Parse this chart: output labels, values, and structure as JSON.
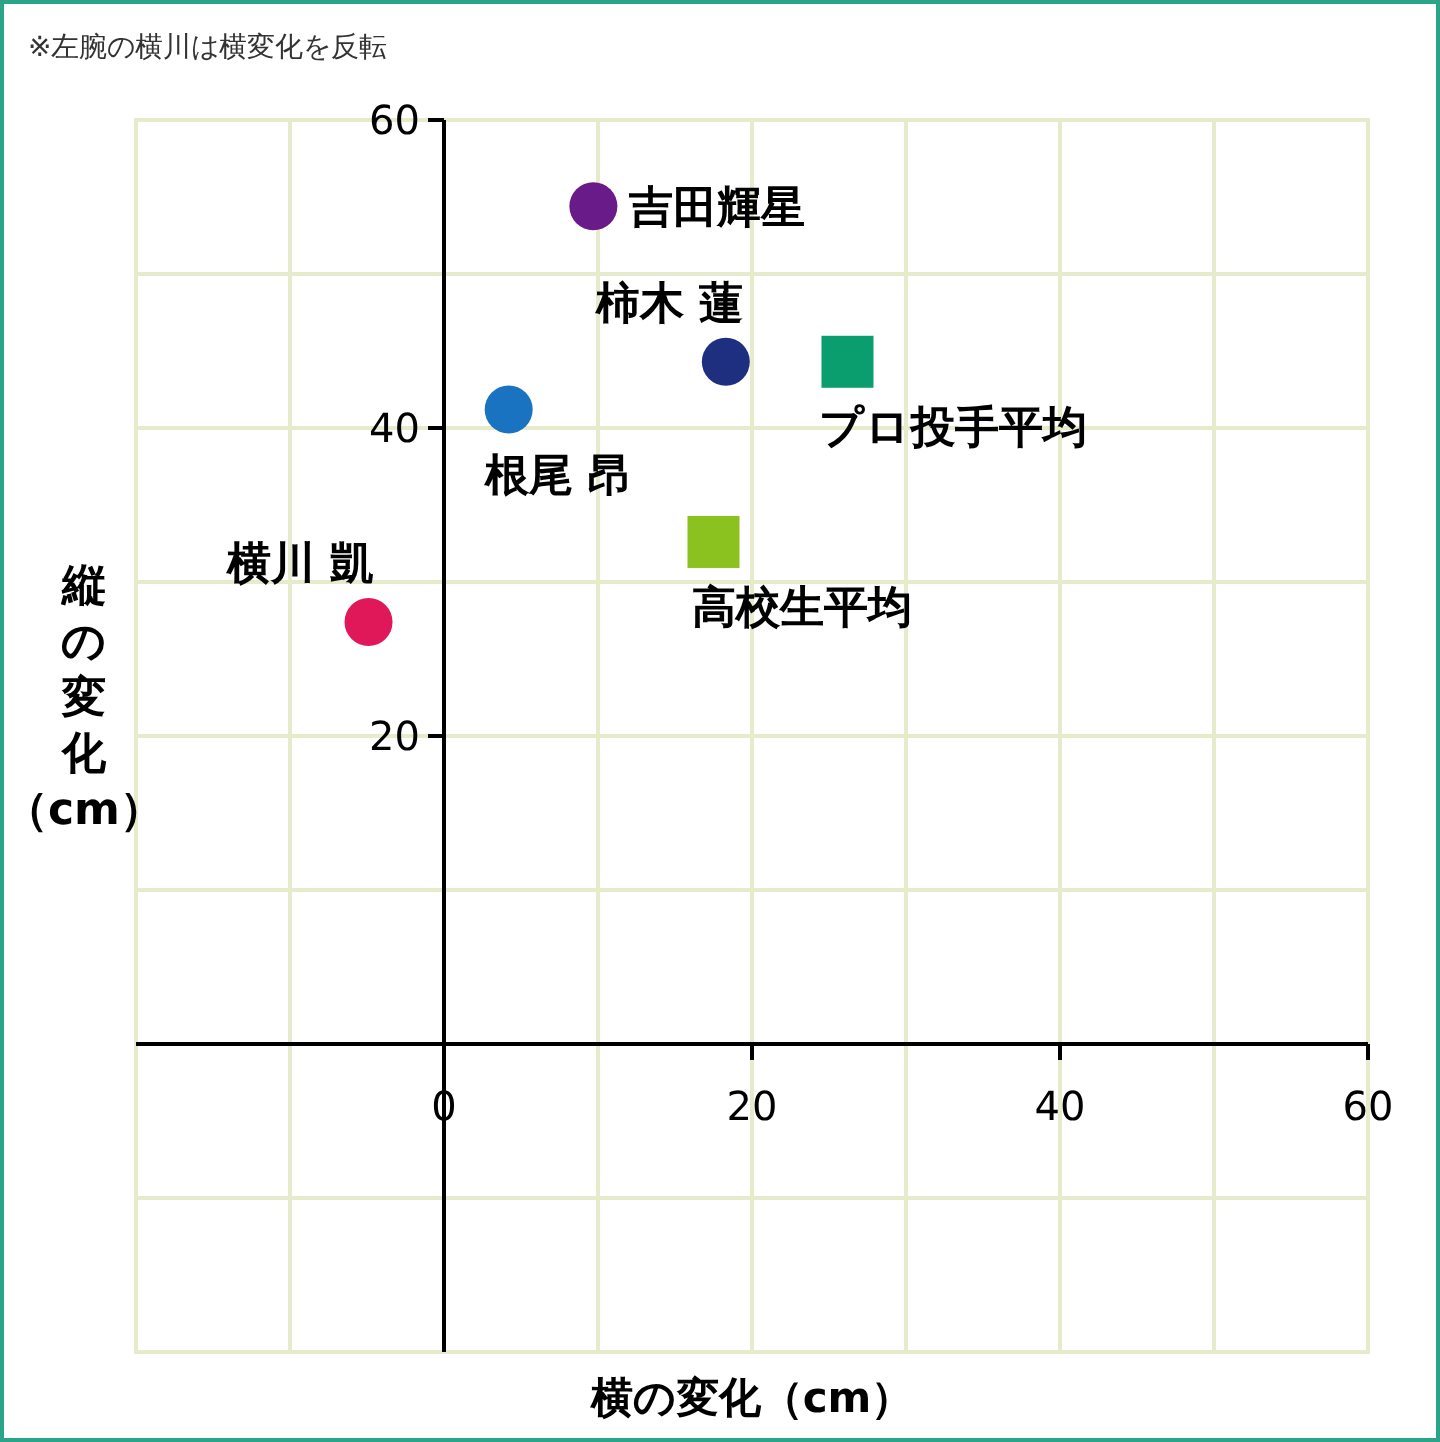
{
  "chart_data": {
    "type": "scatter",
    "annotations": [
      "※左腕の横川は横変化を反転"
    ],
    "xlabel": "横の変化（cm）",
    "ylabel": "縦の変化（cm）",
    "xlim": [
      -20,
      60
    ],
    "ylim": [
      -20,
      60
    ],
    "xticks": [
      {
        "value": -10,
        "label": null
      },
      {
        "value": 0,
        "label": "0"
      },
      {
        "value": 10,
        "label": null
      },
      20,
      {
        "value": 30,
        "label": null
      },
      40,
      {
        "value": 50,
        "label": null
      },
      60
    ],
    "yticks": [
      {
        "value": -10,
        "label": null
      },
      {
        "value": 10,
        "label": null
      },
      20,
      {
        "value": 30,
        "label": null
      },
      40,
      {
        "value": 50,
        "label": null
      },
      60
    ],
    "grid": true,
    "legend": false,
    "series": [
      {
        "name": "吉田輝星",
        "color": "#6a1b8a",
        "marker": "circle",
        "x": [
          9.7
        ],
        "values": [
          54.4
        ]
      },
      {
        "name": "柿木 蓮",
        "color": "#1f2f7f",
        "marker": "circle",
        "x": [
          18.3
        ],
        "values": [
          44.3
        ]
      },
      {
        "name": "プロ投手平均",
        "color": "#0a9e6e",
        "marker": "square",
        "x": [
          26.2
        ],
        "values": [
          44.3
        ]
      },
      {
        "name": "根尾 昂",
        "color": "#1a73c0",
        "marker": "circle",
        "x": [
          4.2
        ],
        "values": [
          41.2
        ]
      },
      {
        "name": "高校生平均",
        "color": "#8cc21f",
        "marker": "square",
        "x": [
          17.5
        ],
        "values": [
          32.6
        ]
      },
      {
        "name": "横川 凱",
        "color": "#e0185a",
        "marker": "circle",
        "x": [
          -4.9
        ],
        "values": [
          27.4
        ]
      }
    ]
  }
}
